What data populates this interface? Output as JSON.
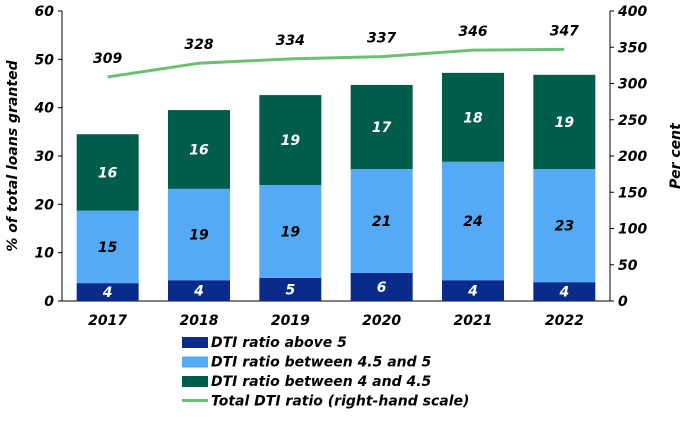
{
  "chart_data": {
    "type": "bar",
    "stacked": true,
    "categories": [
      "2017",
      "2018",
      "2019",
      "2020",
      "2021",
      "2022"
    ],
    "ylabel": "% of total loans granted",
    "y2label": "Per cent",
    "ylim": [
      0,
      60
    ],
    "y2lim": [
      0,
      400
    ],
    "yticks": [
      0,
      10,
      20,
      30,
      40,
      50,
      60
    ],
    "y2ticks": [
      0,
      50,
      100,
      150,
      200,
      250,
      300,
      350,
      400
    ],
    "grid": false,
    "legend_position": "bottom",
    "series": [
      {
        "name": "DTI ratio above 5",
        "color": "#0a2b8c",
        "values": [
          3.7,
          4.3,
          4.8,
          5.8,
          4.3,
          3.9
        ],
        "labels": [
          "4",
          "4",
          "5",
          "6",
          "4",
          "4"
        ]
      },
      {
        "name": "DTI ratio between 4.5 and 5",
        "color": "#55aaf5",
        "values": [
          15.0,
          18.9,
          19.2,
          21.5,
          24.5,
          23.4
        ],
        "labels": [
          "15",
          "19",
          "19",
          "21",
          "24",
          "23"
        ]
      },
      {
        "name": "DTI ratio between 4 and 4.5",
        "color": "#005c4b",
        "values": [
          15.8,
          16.3,
          18.6,
          17.4,
          18.4,
          19.5
        ],
        "labels": [
          "16",
          "16",
          "19",
          "17",
          "18",
          "19"
        ]
      }
    ],
    "line": {
      "name": "Total DTI ratio (right-hand scale)",
      "color": "#6cc072",
      "axis": "right",
      "values": [
        309,
        328,
        334,
        337,
        346,
        347
      ],
      "labels": [
        "309",
        "328",
        "334",
        "337",
        "346",
        "347"
      ]
    }
  }
}
